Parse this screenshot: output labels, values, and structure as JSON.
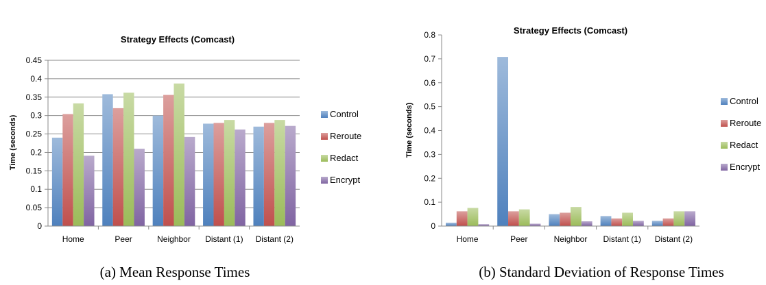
{
  "chart_data": [
    {
      "type": "bar",
      "title": "Strategy Effects (Comcast)",
      "ylabel": "Time (seconds)",
      "xlabel": "",
      "ylim": [
        0,
        0.45
      ],
      "yticks": [
        "0",
        "0.05",
        "0.1",
        "0.15",
        "0.2",
        "0.25",
        "0.3",
        "0.35",
        "0.4",
        "0.45"
      ],
      "grid": true,
      "legend_position": "right",
      "categories": [
        "Home",
        "Peer",
        "Neighbor",
        "Distant (1)",
        "Distant (2)"
      ],
      "series": [
        {
          "name": "Control",
          "color": "#4f81bd",
          "values": [
            0.24,
            0.358,
            0.3,
            0.278,
            0.27
          ]
        },
        {
          "name": "Reroute",
          "color": "#c0504d",
          "values": [
            0.304,
            0.32,
            0.356,
            0.28,
            0.28
          ]
        },
        {
          "name": "Redact",
          "color": "#9bbb59",
          "values": [
            0.333,
            0.362,
            0.387,
            0.288,
            0.288
          ]
        },
        {
          "name": "Encrypt",
          "color": "#8064a2",
          "values": [
            0.191,
            0.21,
            0.242,
            0.262,
            0.272
          ]
        }
      ],
      "caption": "(a)  Mean Response Times"
    },
    {
      "type": "bar",
      "title": "Strategy Effects (Comcast)",
      "ylabel": "Time (seconds)",
      "xlabel": "",
      "ylim": [
        0,
        0.8
      ],
      "yticks": [
        "0",
        "0.1",
        "0.2",
        "0.3",
        "0.4",
        "0.5",
        "0.6",
        "0.7",
        "0.8"
      ],
      "grid": false,
      "legend_position": "right",
      "categories": [
        "Home",
        "Peer",
        "Neighbor",
        "Distant (1)",
        "Distant (2)"
      ],
      "series": [
        {
          "name": "Control",
          "color": "#4f81bd",
          "values": [
            0.014,
            0.708,
            0.05,
            0.042,
            0.022
          ]
        },
        {
          "name": "Reroute",
          "color": "#c0504d",
          "values": [
            0.062,
            0.062,
            0.056,
            0.032,
            0.032
          ]
        },
        {
          "name": "Redact",
          "color": "#9bbb59",
          "values": [
            0.076,
            0.07,
            0.08,
            0.056,
            0.062
          ]
        },
        {
          "name": "Encrypt",
          "color": "#8064a2",
          "values": [
            0.008,
            0.01,
            0.02,
            0.022,
            0.062
          ]
        }
      ],
      "caption": "(b)  Standard Deviation of Response Times"
    }
  ]
}
